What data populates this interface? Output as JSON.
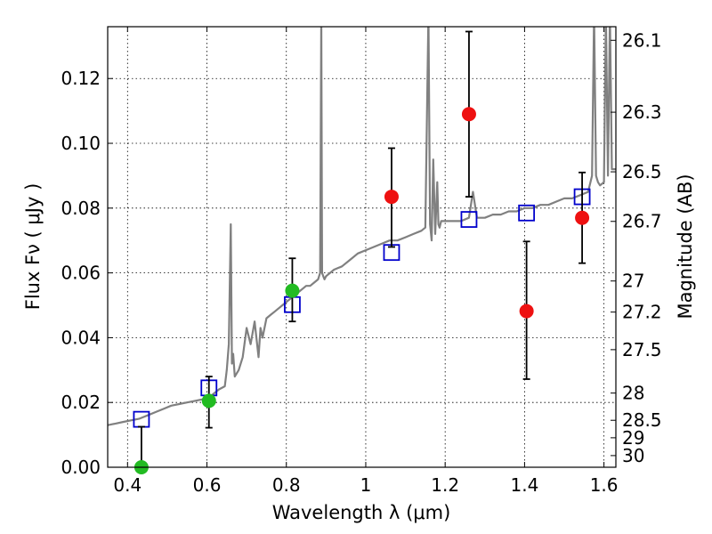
{
  "chart_data": {
    "type": "scatter",
    "xlabel": "Wavelength  λ (μm)",
    "ylabel": "Flux  Fν  ( μJy )",
    "y2label": "Magnitude (AB)",
    "xlim": [
      0.35,
      1.63
    ],
    "ylim": [
      0.0,
      0.136
    ],
    "grid": true,
    "xticks": [
      0.4,
      0.6,
      0.8,
      1.0,
      1.2,
      1.4,
      1.6
    ],
    "xtick_labels": [
      "0.4",
      "0.6",
      "0.8",
      "1",
      "1.2",
      "1.4",
      "1.6"
    ],
    "yticks": [
      0.0,
      0.02,
      0.04,
      0.06,
      0.08,
      0.1,
      0.12
    ],
    "ytick_labels": [
      "0.00",
      "0.02",
      "0.04",
      "0.06",
      "0.08",
      "0.10",
      "0.12"
    ],
    "y2ticks": [
      {
        "label": "26.1",
        "flux": 0.1318
      },
      {
        "label": "26.3",
        "flux": 0.1096
      },
      {
        "label": "26.5",
        "flux": 0.0912
      },
      {
        "label": "26.7",
        "flux": 0.0759
      },
      {
        "label": "27",
        "flux": 0.0575
      },
      {
        "label": "27.2",
        "flux": 0.0479
      },
      {
        "label": "27.5",
        "flux": 0.0363
      },
      {
        "label": "28",
        "flux": 0.0229
      },
      {
        "label": "28.5",
        "flux": 0.0145
      },
      {
        "label": "29",
        "flux": 0.0091
      },
      {
        "label": "30",
        "flux": 0.0036
      }
    ],
    "colors": {
      "model": "#808080",
      "template": "#0000cc",
      "green": "#22bb22",
      "red": "#ee1111",
      "errorbar": "#000000"
    },
    "series": [
      {
        "name": "model spectrum",
        "style": "line",
        "x": [
          0.35,
          0.37,
          0.39,
          0.41,
          0.43,
          0.45,
          0.47,
          0.49,
          0.51,
          0.53,
          0.55,
          0.57,
          0.59,
          0.61,
          0.63,
          0.645,
          0.65,
          0.655,
          0.66,
          0.663,
          0.666,
          0.67,
          0.68,
          0.69,
          0.7,
          0.71,
          0.72,
          0.73,
          0.735,
          0.74,
          0.75,
          0.76,
          0.77,
          0.78,
          0.79,
          0.8,
          0.81,
          0.82,
          0.83,
          0.84,
          0.85,
          0.86,
          0.87,
          0.88,
          0.885,
          0.888,
          0.89,
          0.893,
          0.896,
          0.9,
          0.92,
          0.94,
          0.96,
          0.98,
          1.0,
          1.02,
          1.04,
          1.06,
          1.08,
          1.1,
          1.12,
          1.14,
          1.15,
          1.158,
          1.162,
          1.166,
          1.17,
          1.175,
          1.18,
          1.183,
          1.186,
          1.19,
          1.2,
          1.22,
          1.24,
          1.26,
          1.27,
          1.28,
          1.3,
          1.32,
          1.34,
          1.36,
          1.38,
          1.4,
          1.42,
          1.44,
          1.46,
          1.48,
          1.5,
          1.52,
          1.54,
          1.56,
          1.57,
          1.575,
          1.58,
          1.585,
          1.59,
          1.6,
          1.605,
          1.61,
          1.615,
          1.62,
          1.63
        ],
        "y": [
          0.013,
          0.0135,
          0.014,
          0.0145,
          0.015,
          0.016,
          0.017,
          0.018,
          0.019,
          0.0195,
          0.02,
          0.0205,
          0.021,
          0.022,
          0.024,
          0.025,
          0.03,
          0.038,
          0.075,
          0.032,
          0.035,
          0.028,
          0.03,
          0.034,
          0.043,
          0.038,
          0.045,
          0.034,
          0.043,
          0.04,
          0.046,
          0.047,
          0.048,
          0.049,
          0.05,
          0.051,
          0.052,
          0.053,
          0.054,
          0.055,
          0.056,
          0.056,
          0.057,
          0.058,
          0.06,
          0.14,
          0.06,
          0.059,
          0.058,
          0.059,
          0.061,
          0.062,
          0.064,
          0.066,
          0.067,
          0.068,
          0.069,
          0.07,
          0.07,
          0.071,
          0.072,
          0.073,
          0.074,
          0.14,
          0.075,
          0.07,
          0.095,
          0.072,
          0.088,
          0.075,
          0.074,
          0.076,
          0.076,
          0.076,
          0.076,
          0.077,
          0.085,
          0.077,
          0.077,
          0.078,
          0.078,
          0.079,
          0.079,
          0.08,
          0.08,
          0.081,
          0.081,
          0.082,
          0.083,
          0.083,
          0.084,
          0.085,
          0.09,
          0.14,
          0.09,
          0.088,
          0.087,
          0.088,
          0.14,
          0.09,
          0.14,
          0.092,
          0.092
        ]
      },
      {
        "name": "template photometry",
        "style": "open-square",
        "x": [
          0.435,
          0.605,
          0.815,
          1.065,
          1.26,
          1.405,
          1.545
        ],
        "y": [
          0.0148,
          0.0245,
          0.0502,
          0.0663,
          0.0765,
          0.0785,
          0.0835
        ]
      },
      {
        "name": "observed (green)",
        "style": "filled-circle",
        "x": [
          0.435,
          0.605,
          0.815
        ],
        "y": [
          0.0,
          0.0205,
          0.0545
        ],
        "yerr_low": [
          0.0,
          0.0083,
          0.0095
        ],
        "yerr_high": [
          0.0125,
          0.0075,
          0.01
        ]
      },
      {
        "name": "observed (red)",
        "style": "filled-circle",
        "x": [
          1.065,
          1.26,
          1.405,
          1.545
        ],
        "y": [
          0.0835,
          0.109,
          0.0482,
          0.077
        ],
        "yerr_low": [
          0.0155,
          0.0255,
          0.021,
          0.014
        ],
        "yerr_high": [
          0.015,
          0.0255,
          0.0215,
          0.014
        ]
      }
    ]
  }
}
